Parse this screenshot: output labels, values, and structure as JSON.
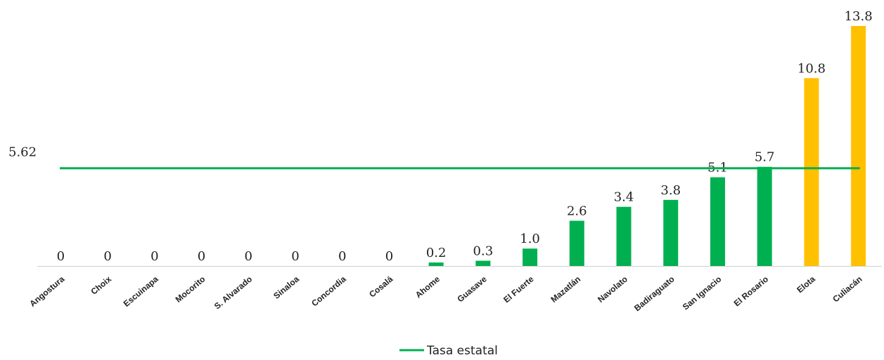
{
  "chart_data": {
    "type": "bar",
    "categories": [
      "Angostura",
      "Choix",
      "Escuinapa",
      "Mocorito",
      "S. Alvarado",
      "Sinaloa",
      "Concordia",
      "Cosalá",
      "Ahome",
      "Guasave",
      "El Fuerte",
      "Mazatlán",
      "Navolato",
      "Badiraguato",
      "San Ignacio",
      "El Rosario",
      "Elota",
      "Culiacán"
    ],
    "values": [
      0,
      0,
      0,
      0,
      0,
      0,
      0,
      0,
      0.2,
      0.3,
      1.0,
      2.6,
      3.4,
      3.8,
      5.1,
      5.7,
      10.8,
      13.8
    ],
    "value_labels": [
      "0",
      "0",
      "0",
      "0",
      "0",
      "0",
      "0",
      "0",
      "0.2",
      "0.3",
      "1.0",
      "2.6",
      "3.4",
      "3.8",
      "5.1",
      "5.7",
      "10.8",
      "13.8"
    ],
    "bar_colors": [
      "#00B050",
      "#00B050",
      "#00B050",
      "#00B050",
      "#00B050",
      "#00B050",
      "#00B050",
      "#00B050",
      "#00B050",
      "#00B050",
      "#00B050",
      "#00B050",
      "#00B050",
      "#00B050",
      "#00B050",
      "#00B050",
      "#FFC000",
      "#FFC000"
    ],
    "reference_line": {
      "name": "Tasa estatal",
      "value": 5.62,
      "label": "5.62",
      "color": "#00B050"
    },
    "legend": {
      "position": "bottom",
      "entries": [
        "Tasa estatal"
      ]
    },
    "ylim": [
      0,
      13.8
    ],
    "grid": false,
    "title": "",
    "xlabel": "",
    "ylabel": ""
  }
}
